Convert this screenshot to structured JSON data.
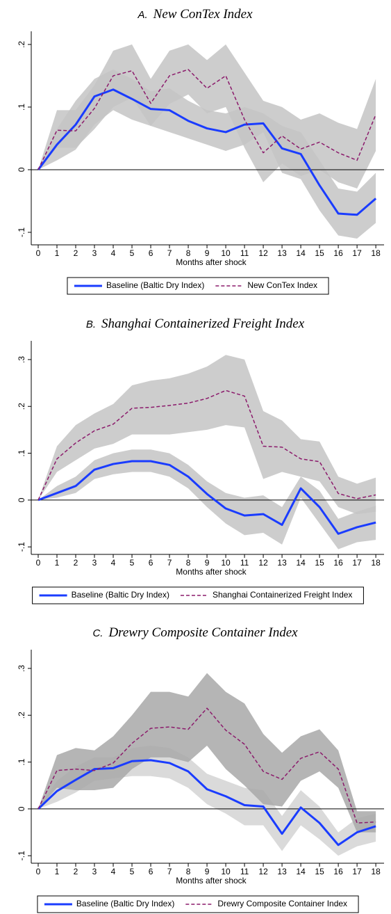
{
  "chart_data": [
    {
      "type": "line",
      "title_letter": "A.",
      "title": "New ConTex Index",
      "xlabel": "Months after shock",
      "x": [
        0,
        1,
        2,
        3,
        4,
        5,
        6,
        7,
        8,
        9,
        10,
        11,
        12,
        13,
        14,
        15,
        16,
        17,
        18
      ],
      "xlim": [
        -0.37,
        18.44
      ],
      "xticks": [
        0,
        1,
        2,
        3,
        4,
        5,
        6,
        7,
        8,
        9,
        10,
        11,
        12,
        13,
        14,
        15,
        16,
        17,
        18
      ],
      "ylim": [
        -0.12,
        0.221
      ],
      "yticks": [
        {
          "value": -0.1,
          "label": "-.1"
        },
        0,
        {
          "value": 0.1,
          "label": ".1"
        },
        {
          "value": 0.2,
          "label": ".2"
        }
      ],
      "hline": 0,
      "series": [
        {
          "name": "Baseline (Baltic Dry Index)",
          "color": "#1a3cff",
          "band_color": "#c4c4c4",
          "dashed": false,
          "values": [
            0,
            0.04,
            0.072,
            0.117,
            0.128,
            0.113,
            0.097,
            0.095,
            0.078,
            0.066,
            0.06,
            0.072,
            0.074,
            0.034,
            0.025,
            -0.025,
            -0.07,
            -0.072,
            -0.046
          ],
          "lower": [
            0,
            0.015,
            0.032,
            0.072,
            0.095,
            0.08,
            0.07,
            0.06,
            0.05,
            0.04,
            0.03,
            0.04,
            0.06,
            -0.005,
            -0.015,
            -0.065,
            -0.105,
            -0.11,
            -0.085
          ],
          "upper": [
            0,
            0.065,
            0.11,
            0.145,
            0.16,
            0.145,
            0.125,
            0.13,
            0.11,
            0.095,
            0.09,
            0.1,
            0.09,
            0.07,
            0.06,
            0.015,
            -0.03,
            -0.035,
            -0.005
          ]
        },
        {
          "name": "New ConTex Index",
          "color": "#8b1a6b",
          "band_color": "#c4c4c4",
          "dashed": true,
          "values": [
            0,
            0.063,
            0.062,
            0.098,
            0.15,
            0.158,
            0.106,
            0.15,
            0.16,
            0.13,
            0.15,
            0.08,
            0.027,
            0.054,
            0.033,
            0.044,
            0.027,
            0.015,
            0.088
          ],
          "lower": [
            0,
            0.035,
            0.035,
            0.065,
            0.1,
            0.115,
            0.07,
            0.105,
            0.12,
            0.09,
            0.1,
            0.035,
            -0.02,
            0.01,
            -0.01,
            0,
            -0.02,
            -0.03,
            0.03
          ],
          "upper": [
            0,
            0.095,
            0.095,
            0.135,
            0.19,
            0.2,
            0.145,
            0.19,
            0.2,
            0.175,
            0.2,
            0.155,
            0.11,
            0.1,
            0.08,
            0.09,
            0.075,
            0.065,
            0.145
          ]
        }
      ]
    },
    {
      "type": "line",
      "title_letter": "B.",
      "title": "Shanghai Containerized Freight Index",
      "xlabel": "Months after shock",
      "x": [
        0,
        1,
        2,
        3,
        4,
        5,
        6,
        7,
        8,
        9,
        10,
        11,
        12,
        13,
        14,
        15,
        16,
        17,
        18
      ],
      "xlim": [
        -0.37,
        18.44
      ],
      "xticks": [
        0,
        1,
        2,
        3,
        4,
        5,
        6,
        7,
        8,
        9,
        10,
        11,
        12,
        13,
        14,
        15,
        16,
        17,
        18
      ],
      "ylim": [
        -0.116,
        0.34
      ],
      "yticks": [
        {
          "value": -0.1,
          "label": "-.1"
        },
        0,
        {
          "value": 0.1,
          "label": ".1"
        },
        {
          "value": 0.2,
          "label": ".2"
        },
        {
          "value": 0.3,
          "label": ".3"
        }
      ],
      "hline": 0,
      "series": [
        {
          "name": "Baseline (Baltic Dry Index)",
          "color": "#1a3cff",
          "band_color": "#c4c4c4",
          "dashed": false,
          "values": [
            0,
            0.015,
            0.03,
            0.065,
            0.077,
            0.083,
            0.083,
            0.075,
            0.05,
            0.013,
            -0.018,
            -0.033,
            -0.03,
            -0.053,
            0.025,
            -0.015,
            -0.072,
            -0.058,
            -0.048
          ],
          "lower": [
            0,
            0.005,
            0.015,
            0.045,
            0.055,
            0.06,
            0.06,
            0.05,
            0.025,
            -0.015,
            -0.05,
            -0.075,
            -0.07,
            -0.095,
            0.005,
            -0.05,
            -0.105,
            -0.09,
            -0.085
          ],
          "upper": [
            0,
            0.03,
            0.05,
            0.085,
            0.1,
            0.108,
            0.108,
            0.1,
            0.075,
            0.04,
            0.015,
            0.005,
            0.01,
            -0.015,
            0.05,
            0.02,
            -0.04,
            -0.025,
            -0.012
          ]
        },
        {
          "name": "Shanghai Containerized Freight Index",
          "color": "#8b1a6b",
          "band_color": "#c4c4c4",
          "dashed": true,
          "values": [
            0,
            0.088,
            0.122,
            0.148,
            0.162,
            0.196,
            0.198,
            0.202,
            0.207,
            0.217,
            0.234,
            0.222,
            0.115,
            0.113,
            0.088,
            0.082,
            0.014,
            0.003,
            0.011
          ],
          "lower": [
            0,
            0.06,
            0.085,
            0.11,
            0.12,
            0.14,
            0.14,
            0.14,
            0.145,
            0.15,
            0.16,
            0.155,
            0.045,
            0.06,
            0.05,
            0.04,
            -0.015,
            -0.03,
            -0.025
          ],
          "upper": [
            0,
            0.115,
            0.16,
            0.185,
            0.205,
            0.245,
            0.255,
            0.26,
            0.27,
            0.285,
            0.31,
            0.3,
            0.19,
            0.17,
            0.13,
            0.125,
            0.05,
            0.035,
            0.048
          ]
        }
      ]
    },
    {
      "type": "line",
      "title_letter": "C.",
      "title": "Drewry Composite Container Index",
      "xlabel": "Months after shock",
      "x": [
        0,
        1,
        2,
        3,
        4,
        5,
        6,
        7,
        8,
        9,
        10,
        11,
        12,
        13,
        14,
        15,
        16,
        17,
        18
      ],
      "xlim": [
        -0.37,
        18.44
      ],
      "xticks": [
        0,
        1,
        2,
        3,
        4,
        5,
        6,
        7,
        8,
        9,
        10,
        11,
        12,
        13,
        14,
        15,
        16,
        17,
        18
      ],
      "ylim": [
        -0.116,
        0.34
      ],
      "yticks": [
        {
          "value": -0.1,
          "label": "-.1"
        },
        0,
        {
          "value": 0.1,
          "label": ".1"
        },
        {
          "value": 0.2,
          "label": ".2"
        },
        {
          "value": 0.3,
          "label": ".3"
        }
      ],
      "hline": 0,
      "series": [
        {
          "name": "Baseline (Baltic Dry Index)",
          "color": "#1a3cff",
          "band_color": "#d4d4d4",
          "dashed": false,
          "values": [
            0,
            0.038,
            0.062,
            0.085,
            0.087,
            0.102,
            0.104,
            0.098,
            0.08,
            0.042,
            0.027,
            0.008,
            0.005,
            -0.053,
            0.003,
            -0.03,
            -0.077,
            -0.05,
            -0.037
          ],
          "lower": [
            0,
            0.015,
            0.035,
            0.06,
            0.065,
            0.07,
            0.07,
            0.065,
            0.045,
            0.01,
            -0.01,
            -0.035,
            -0.035,
            -0.09,
            -0.035,
            -0.065,
            -0.1,
            -0.08,
            -0.07
          ],
          "upper": [
            0,
            0.06,
            0.09,
            0.11,
            0.11,
            0.13,
            0.135,
            0.13,
            0.11,
            0.075,
            0.06,
            0.045,
            0.04,
            -0.015,
            0.04,
            0.005,
            -0.05,
            -0.02,
            -0.01
          ]
        },
        {
          "name": "Drewry Composite Container Index",
          "color": "#8b1a6b",
          "band_color": "#a8a8a8",
          "dashed": true,
          "values": [
            0,
            0.082,
            0.085,
            0.082,
            0.098,
            0.14,
            0.172,
            0.175,
            0.17,
            0.215,
            0.168,
            0.138,
            0.08,
            0.063,
            0.108,
            0.122,
            0.085,
            -0.03,
            -0.028
          ],
          "lower": [
            0,
            0.045,
            0.04,
            0.04,
            0.045,
            0.085,
            0.11,
            0.11,
            0.1,
            0.135,
            0.085,
            0.05,
            0.01,
            0.005,
            0.06,
            0.08,
            0.045,
            -0.05,
            -0.05
          ],
          "upper": [
            0,
            0.115,
            0.13,
            0.125,
            0.155,
            0.2,
            0.25,
            0.25,
            0.24,
            0.29,
            0.25,
            0.225,
            0.16,
            0.12,
            0.155,
            0.17,
            0.125,
            -0.005,
            -0.005
          ]
        }
      ]
    }
  ]
}
